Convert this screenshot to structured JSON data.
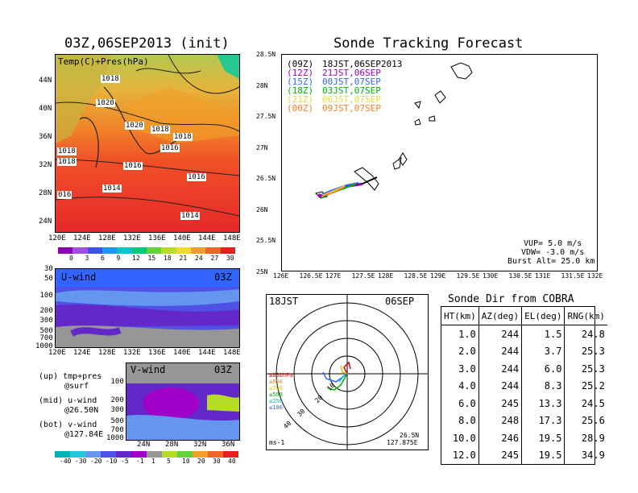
{
  "left": {
    "title": "03Z,06SEP2013 (init)",
    "map_label": "Temp(C)+Pres(hPa)",
    "lat_labels": [
      "44N",
      "40N",
      "36N",
      "32N",
      "28N",
      "24N"
    ],
    "lon_labels": [
      "120E",
      "124E",
      "128E",
      "132E",
      "136E",
      "140E",
      "144E",
      "148E"
    ],
    "isobars": [
      {
        "text": "1018",
        "x": 1,
        "y": 1
      },
      {
        "text": "1020",
        "x": 2,
        "y": 2
      },
      {
        "text": "1020",
        "x": 3,
        "y": 3
      },
      {
        "text": "1018",
        "x": 4,
        "y": 4
      },
      {
        "text": "1018",
        "x": 5,
        "y": 5
      },
      {
        "text": "1016",
        "x": 6,
        "y": 6
      },
      {
        "text": "1018",
        "x": 7,
        "y": 7
      },
      {
        "text": "1018",
        "x": 8,
        "y": 8
      },
      {
        "text": "1016",
        "x": 9,
        "y": 9
      },
      {
        "text": "1016",
        "x": 10,
        "y": 10
      },
      {
        "text": "1014",
        "x": 11,
        "y": 11
      },
      {
        "text": "016",
        "x": 12,
        "y": 12
      },
      {
        "text": "1014",
        "x": 13,
        "y": 13
      }
    ],
    "temp_colorbar": [
      "0",
      "3",
      "6",
      "9",
      "12",
      "15",
      "18",
      "21",
      "24",
      "27",
      "30"
    ],
    "uwind_label": "U-wind",
    "uwind_time": "03Z",
    "uwind_levels": [
      "30",
      "50",
      "100",
      "200",
      "300",
      "500",
      "700",
      "1000"
    ],
    "vwind_label": "V-wind",
    "vwind_time": "03Z",
    "vwind_levels": [
      "100",
      "200",
      "300",
      "500",
      "700",
      "1000"
    ],
    "vwind_lats": [
      "24N",
      "28N",
      "32N",
      "36N"
    ],
    "wind_colorbar": [
      "-40",
      "-30",
      "-20",
      "-10",
      "-5",
      "-1",
      "1",
      "5",
      "10",
      "20",
      "30",
      "40"
    ],
    "legend_up": "(up) tmp+pres",
    "legend_up2": "@surf",
    "legend_mid": "(mid) u-wind",
    "legend_mid2": "@26.50N",
    "legend_bot": "(bot) v-wind",
    "legend_bot2": "@127.84E"
  },
  "track": {
    "title": "Sonde Tracking Forecast",
    "lat_labels": [
      "28.5N",
      "28N",
      "27.5N",
      "27N",
      "26.5N",
      "26N",
      "25.5N",
      "25N"
    ],
    "lon_labels": [
      "126E",
      "126.5E",
      "127E",
      "127.5E",
      "128E",
      "128.5E",
      "129E",
      "129.5E",
      "130E",
      "130.5E",
      "131E",
      "131.5E",
      "132E"
    ],
    "launches": [
      {
        "code": "(09Z)",
        "time": "18JST,06SEP2013",
        "color": "#000000"
      },
      {
        "code": "(12Z)",
        "time": "21JST,06SEP",
        "color": "#a000c8"
      },
      {
        "code": "(15Z)",
        "time": "00JST,07SEP",
        "color": "#3264ff"
      },
      {
        "code": "(18Z)",
        "time": "03JST,07SEP",
        "color": "#00b400"
      },
      {
        "code": "(21Z)",
        "time": "06JST,07SEP",
        "color": "#e6dc32"
      },
      {
        "code": "(00Z)",
        "time": "09JST,07SEP",
        "color": "#f08228"
      }
    ],
    "vup": "VUP= 5.0 m/s",
    "vdw": "VDW= -3.0 m/s",
    "burst": "Burst Alt= 25.0 km"
  },
  "polar": {
    "time": "18JST",
    "date": "06SEP",
    "unit": "ms-1",
    "lat": "26.5N",
    "lon": "127.875E",
    "ring_labels": [
      "10",
      "20",
      "30",
      "40"
    ],
    "levels": [
      {
        "text": "≥850hPa",
        "color": "#e60000"
      },
      {
        "text": "≤850",
        "color": "#f08228"
      },
      {
        "text": "≤700",
        "color": "#e6c800"
      },
      {
        "text": "≤500",
        "color": "#00b400"
      },
      {
        "text": "≤250",
        "color": "#00c8c8"
      },
      {
        "text": "≤100",
        "color": "#3264ff"
      }
    ]
  },
  "direction_table": {
    "title": "Sonde Dir from COBRA",
    "headers": [
      "HT(km)",
      "AZ(deg)",
      "EL(deg)",
      "RNG(km)"
    ],
    "rows": [
      [
        "1.0",
        "244",
        "1.5",
        "24.8"
      ],
      [
        "2.0",
        "244",
        "3.7",
        "25.3"
      ],
      [
        "3.0",
        "244",
        "6.0",
        "25.3"
      ],
      [
        "4.0",
        "244",
        "8.3",
        "25.2"
      ],
      [
        "6.0",
        "245",
        "13.3",
        "24.5"
      ],
      [
        "8.0",
        "248",
        "17.3",
        "25.6"
      ],
      [
        "10.0",
        "246",
        "19.5",
        "28.9"
      ],
      [
        "12.0",
        "245",
        "19.5",
        "34.9"
      ]
    ]
  },
  "colors": {
    "temp_scale": [
      "#8c00b4",
      "#a050dc",
      "#3c50f0",
      "#1e96f0",
      "#00c8c8",
      "#00c878",
      "#64d23c",
      "#b4dc28",
      "#f0dc28",
      "#f0a028",
      "#f06428",
      "#e61e1e"
    ],
    "wind_scale": [
      "#00b4b4",
      "#28c8dc",
      "#6496f0",
      "#5050e6",
      "#6428c8",
      "#a000c8",
      "#969696",
      "#b4dc28",
      "#64d23c",
      "#f0a028",
      "#f06428",
      "#e61e1e"
    ]
  }
}
